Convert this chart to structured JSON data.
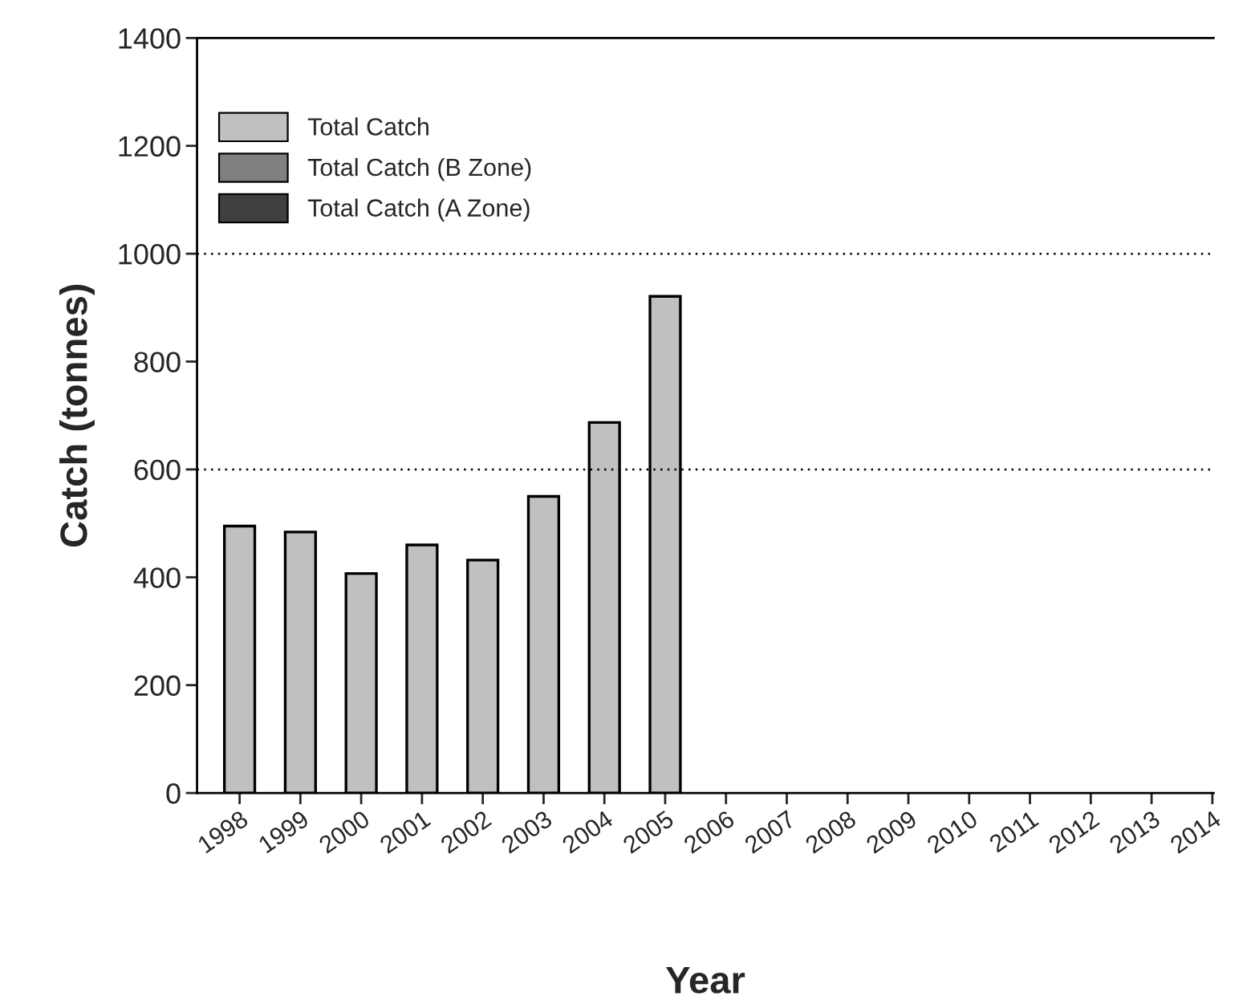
{
  "chart_data": {
    "type": "bar",
    "xlabel": "Year",
    "ylabel": "Catch (tonnes)",
    "categories": [
      "1998",
      "1999",
      "2000",
      "2001",
      "2002",
      "2003",
      "2004",
      "2005",
      "2006",
      "2007",
      "2008",
      "2009",
      "2010",
      "2011",
      "2012",
      "2013",
      "2014"
    ],
    "series": [
      {
        "name": "Total Catch",
        "color": "#c0c0c0",
        "values": [
          495,
          484,
          407,
          460,
          432,
          550,
          687,
          921,
          null,
          null,
          null,
          null,
          null,
          null,
          null,
          null,
          null
        ]
      },
      {
        "name": "Total Catch (B Zone)",
        "color": "#808080",
        "values": [
          null,
          null,
          null,
          null,
          null,
          null,
          null,
          null,
          null,
          null,
          null,
          null,
          null,
          null,
          null,
          null,
          null
        ]
      },
      {
        "name": "Total Catch (A Zone)",
        "color": "#404040",
        "values": [
          null,
          null,
          null,
          null,
          null,
          null,
          null,
          null,
          null,
          null,
          null,
          null,
          null,
          null,
          null,
          null,
          null
        ]
      }
    ],
    "ylim": [
      0,
      1400
    ],
    "yticks": [
      0,
      200,
      400,
      600,
      800,
      1000,
      1200,
      1400
    ],
    "ref_lines": [
      {
        "axis": "y",
        "value": 1000,
        "color": "#000000",
        "line_style": "dotted"
      },
      {
        "axis": "y",
        "value": 600,
        "color": "#000000",
        "line_style": "dotted"
      }
    ],
    "legend": "top left",
    "grid": false
  }
}
